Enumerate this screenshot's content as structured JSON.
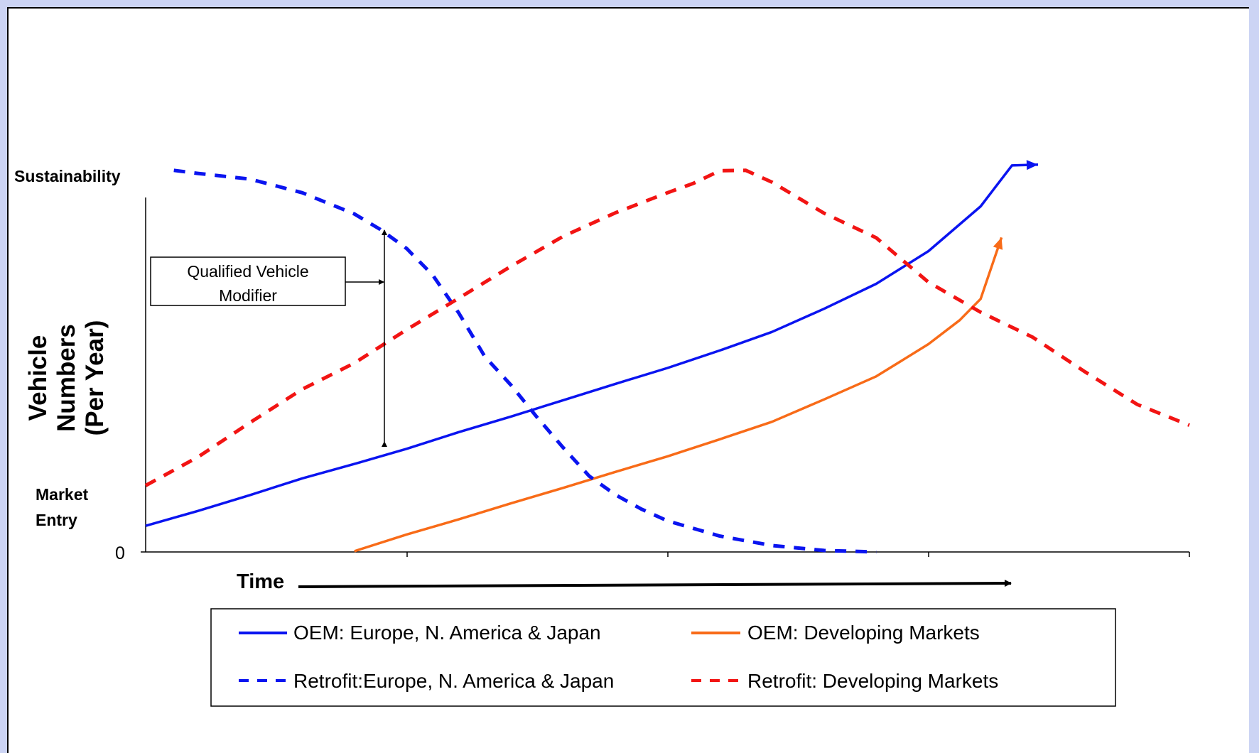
{
  "chart_data": {
    "type": "line",
    "title": "",
    "xlabel": "Time",
    "ylabel": "Vehicle Numbers (Per Year)",
    "ylim": [
      0,
      100
    ],
    "xlim": [
      0,
      100
    ],
    "y_tick_labels": [
      {
        "label": "0",
        "y": 0
      },
      {
        "label": "Market Entry",
        "y": 15
      },
      {
        "label": "Sustainability",
        "y": 100
      }
    ],
    "x_tick_labels": [],
    "grid": false,
    "legend_placement": "bottom",
    "annotations": [
      {
        "text": "Qualified Vehicle Modifier",
        "arrow_x": 23,
        "arrow_y_range": [
          30,
          84.5
        ],
        "pointer_y": 70.5
      }
    ],
    "series": [
      {
        "name": "OEM: Europe, N. America & Japan",
        "color": "#0a14f0",
        "dash": false,
        "x": [
          0,
          5,
          10,
          15,
          20,
          25,
          30,
          35,
          40,
          45,
          50,
          55,
          60,
          65,
          70,
          75,
          80,
          83,
          85.5
        ],
        "y": [
          6.9,
          10.8,
          15.0,
          19.4,
          23.2,
          27.2,
          31.6,
          35.7,
          40.0,
          44.3,
          48.5,
          53.1,
          58.0,
          64.1,
          70.7,
          79.3,
          91.1,
          101.9,
          102.1
        ]
      },
      {
        "name": "OEM: Developing Markets",
        "color": "#f86b18",
        "dash": false,
        "x": [
          20,
          25,
          30,
          35,
          40,
          45,
          50,
          55,
          60,
          65,
          70,
          75,
          78,
          80,
          82
        ],
        "y": [
          0.2,
          4.6,
          8.6,
          12.8,
          16.9,
          21.1,
          25.2,
          29.7,
          34.3,
          40.2,
          46.3,
          54.8,
          61.1,
          66.7,
          82.9
        ]
      },
      {
        "name": "Retrofit:Europe, N. America & Japan",
        "color": "#0a14f0",
        "dash": true,
        "x": [
          2.7,
          5,
          10,
          15,
          20,
          22.5,
          25,
          27.5,
          30,
          32.5,
          35,
          37.5,
          40,
          42.5,
          45,
          47.5,
          50,
          55,
          60,
          65,
          70
        ],
        "y": [
          100.6,
          99.8,
          98.3,
          94.7,
          89.1,
          85.0,
          80.0,
          73.0,
          63.0,
          51.5,
          44.0,
          35.5,
          27.5,
          20.0,
          15.1,
          11.3,
          8.2,
          4.2,
          1.7,
          0.4,
          0.0
        ]
      },
      {
        "name": "Retrofit: Developing Markets",
        "color": "#f21413",
        "dash": true,
        "x": [
          0,
          5,
          10,
          15,
          20,
          25,
          30,
          35,
          40,
          45,
          50,
          52.5,
          55,
          57.5,
          60,
          65,
          70,
          75,
          80,
          85,
          90,
          95,
          100
        ],
        "y": [
          17.5,
          25.0,
          34.1,
          42.9,
          49.8,
          58.6,
          66.9,
          75.3,
          83.2,
          89.4,
          94.7,
          97.2,
          100.5,
          100.6,
          97.5,
          89.3,
          82.8,
          71.1,
          63.2,
          56.6,
          47.5,
          38.9,
          33.4
        ]
      }
    ]
  }
}
